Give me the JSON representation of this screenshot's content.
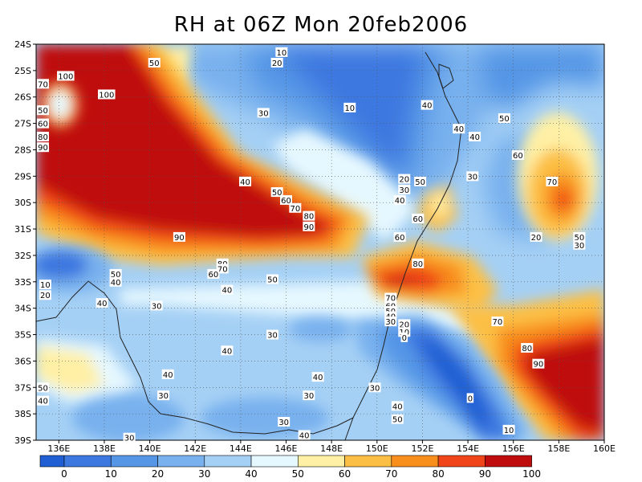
{
  "title": "RH at 06Z Mon 20feb2006",
  "colors": {
    "b0": "#1f5fd3",
    "b10": "#3c78e0",
    "b20": "#5596e6",
    "b30": "#78b1ee",
    "b40": "#a5d0f5",
    "b50": "#e6f8ff",
    "b60": "#fff0a5",
    "b70": "#fcbf45",
    "b80": "#f88e1c",
    "b90": "#ef4519",
    "b100": "#bf0c0c"
  },
  "map": {
    "lat_labels": [
      "24S",
      "25S",
      "26S",
      "27S",
      "28S",
      "29S",
      "30S",
      "31S",
      "32S",
      "33S",
      "34S",
      "35S",
      "36S",
      "37S",
      "38S",
      "39S"
    ],
    "lon_labels": [
      "136E",
      "138E",
      "140E",
      "142E",
      "144E",
      "146E",
      "148E",
      "150E",
      "152E",
      "154E",
      "156E",
      "158E",
      "160E"
    ]
  },
  "colorbar": {
    "labels": [
      "0",
      "10",
      "20",
      "30",
      "40",
      "50",
      "60",
      "70",
      "80",
      "90",
      "100"
    ]
  },
  "contour_labels": [
    {
      "t": "100",
      "lon": 136.3,
      "lat": -25.2
    },
    {
      "t": "70",
      "lon": 135.3,
      "lat": -25.5
    },
    {
      "t": "100",
      "lon": 138.1,
      "lat": -25.9
    },
    {
      "t": "50",
      "lon": 135.3,
      "lat": -26.5
    },
    {
      "t": "60",
      "lon": 135.3,
      "lat": -27.0
    },
    {
      "t": "80",
      "lon": 135.3,
      "lat": -27.5
    },
    {
      "t": "90",
      "lon": 135.3,
      "lat": -27.9
    },
    {
      "t": "50",
      "lon": 140.2,
      "lat": -24.7
    },
    {
      "t": "10",
      "lon": 145.8,
      "lat": -24.3
    },
    {
      "t": "20",
      "lon": 145.6,
      "lat": -24.7
    },
    {
      "t": "10",
      "lon": 148.8,
      "lat": -26.4
    },
    {
      "t": "30",
      "lon": 145.0,
      "lat": -26.6
    },
    {
      "t": "40",
      "lon": 152.2,
      "lat": -26.3
    },
    {
      "t": "40",
      "lon": 153.6,
      "lat": -27.2
    },
    {
      "t": "40",
      "lon": 154.3,
      "lat": -27.5
    },
    {
      "t": "50",
      "lon": 155.6,
      "lat": -26.8
    },
    {
      "t": "60",
      "lon": 156.2,
      "lat": -28.2
    },
    {
      "t": "70",
      "lon": 157.7,
      "lat": -29.2
    },
    {
      "t": "30",
      "lon": 154.2,
      "lat": -29.0
    },
    {
      "t": "20",
      "lon": 151.2,
      "lat": -29.1
    },
    {
      "t": "30",
      "lon": 151.2,
      "lat": -29.5
    },
    {
      "t": "40",
      "lon": 151.0,
      "lat": -29.9
    },
    {
      "t": "50",
      "lon": 151.9,
      "lat": -29.2
    },
    {
      "t": "60",
      "lon": 151.8,
      "lat": -30.6
    },
    {
      "t": "40",
      "lon": 144.2,
      "lat": -29.2
    },
    {
      "t": "50",
      "lon": 145.6,
      "lat": -29.6
    },
    {
      "t": "60",
      "lon": 146.0,
      "lat": -29.9
    },
    {
      "t": "70",
      "lon": 146.4,
      "lat": -30.2
    },
    {
      "t": "80",
      "lon": 147.0,
      "lat": -30.5
    },
    {
      "t": "90",
      "lon": 147.0,
      "lat": -30.9
    },
    {
      "t": "90",
      "lon": 141.3,
      "lat": -31.3
    },
    {
      "t": "20",
      "lon": 157.0,
      "lat": -31.3
    },
    {
      "t": "50",
      "lon": 158.9,
      "lat": -31.3
    },
    {
      "t": "30",
      "lon": 158.9,
      "lat": -31.6
    },
    {
      "t": "60",
      "lon": 151.0,
      "lat": -31.3
    },
    {
      "t": "80",
      "lon": 151.8,
      "lat": -32.3
    },
    {
      "t": "80",
      "lon": 143.2,
      "lat": -32.3
    },
    {
      "t": "70",
      "lon": 143.2,
      "lat": -32.5
    },
    {
      "t": "60",
      "lon": 142.8,
      "lat": -32.7
    },
    {
      "t": "50",
      "lon": 145.4,
      "lat": -32.9
    },
    {
      "t": "50",
      "lon": 138.5,
      "lat": -32.7
    },
    {
      "t": "40",
      "lon": 138.5,
      "lat": -33.0
    },
    {
      "t": "10",
      "lon": 135.4,
      "lat": -33.1
    },
    {
      "t": "20",
      "lon": 135.4,
      "lat": -33.5
    },
    {
      "t": "40",
      "lon": 143.4,
      "lat": -33.3
    },
    {
      "t": "40",
      "lon": 137.9,
      "lat": -33.8
    },
    {
      "t": "30",
      "lon": 140.3,
      "lat": -33.9
    },
    {
      "t": "70",
      "lon": 150.6,
      "lat": -33.6
    },
    {
      "t": "60",
      "lon": 150.6,
      "lat": -33.9
    },
    {
      "t": "50",
      "lon": 150.6,
      "lat": -34.1
    },
    {
      "t": "40",
      "lon": 150.6,
      "lat": -34.3
    },
    {
      "t": "30",
      "lon": 150.6,
      "lat": -34.5
    },
    {
      "t": "20",
      "lon": 151.2,
      "lat": -34.6
    },
    {
      "t": "10",
      "lon": 151.2,
      "lat": -34.9
    },
    {
      "t": "0",
      "lon": 151.2,
      "lat": -35.1
    },
    {
      "t": "70",
      "lon": 155.3,
      "lat": -34.5
    },
    {
      "t": "30",
      "lon": 145.4,
      "lat": -35.0
    },
    {
      "t": "40",
      "lon": 143.4,
      "lat": -35.6
    },
    {
      "t": "80",
      "lon": 156.6,
      "lat": -35.5
    },
    {
      "t": "90",
      "lon": 157.1,
      "lat": -36.1
    },
    {
      "t": "40",
      "lon": 140.8,
      "lat": -36.5
    },
    {
      "t": "40",
      "lon": 147.4,
      "lat": -36.6
    },
    {
      "t": "50",
      "lon": 135.3,
      "lat": -37.0
    },
    {
      "t": "40",
      "lon": 135.3,
      "lat": -37.5
    },
    {
      "t": "30",
      "lon": 140.6,
      "lat": -37.3
    },
    {
      "t": "30",
      "lon": 147.0,
      "lat": -37.3
    },
    {
      "t": "30",
      "lon": 149.9,
      "lat": -37.0
    },
    {
      "t": "0",
      "lon": 154.1,
      "lat": -37.4
    },
    {
      "t": "40",
      "lon": 150.9,
      "lat": -37.7
    },
    {
      "t": "50",
      "lon": 150.9,
      "lat": -38.2
    },
    {
      "t": "30",
      "lon": 145.9,
      "lat": -38.3
    },
    {
      "t": "40",
      "lon": 146.8,
      "lat": -38.8
    },
    {
      "t": "30",
      "lon": 139.1,
      "lat": -38.9
    },
    {
      "t": "10",
      "lon": 155.8,
      "lat": -38.6
    }
  ]
}
